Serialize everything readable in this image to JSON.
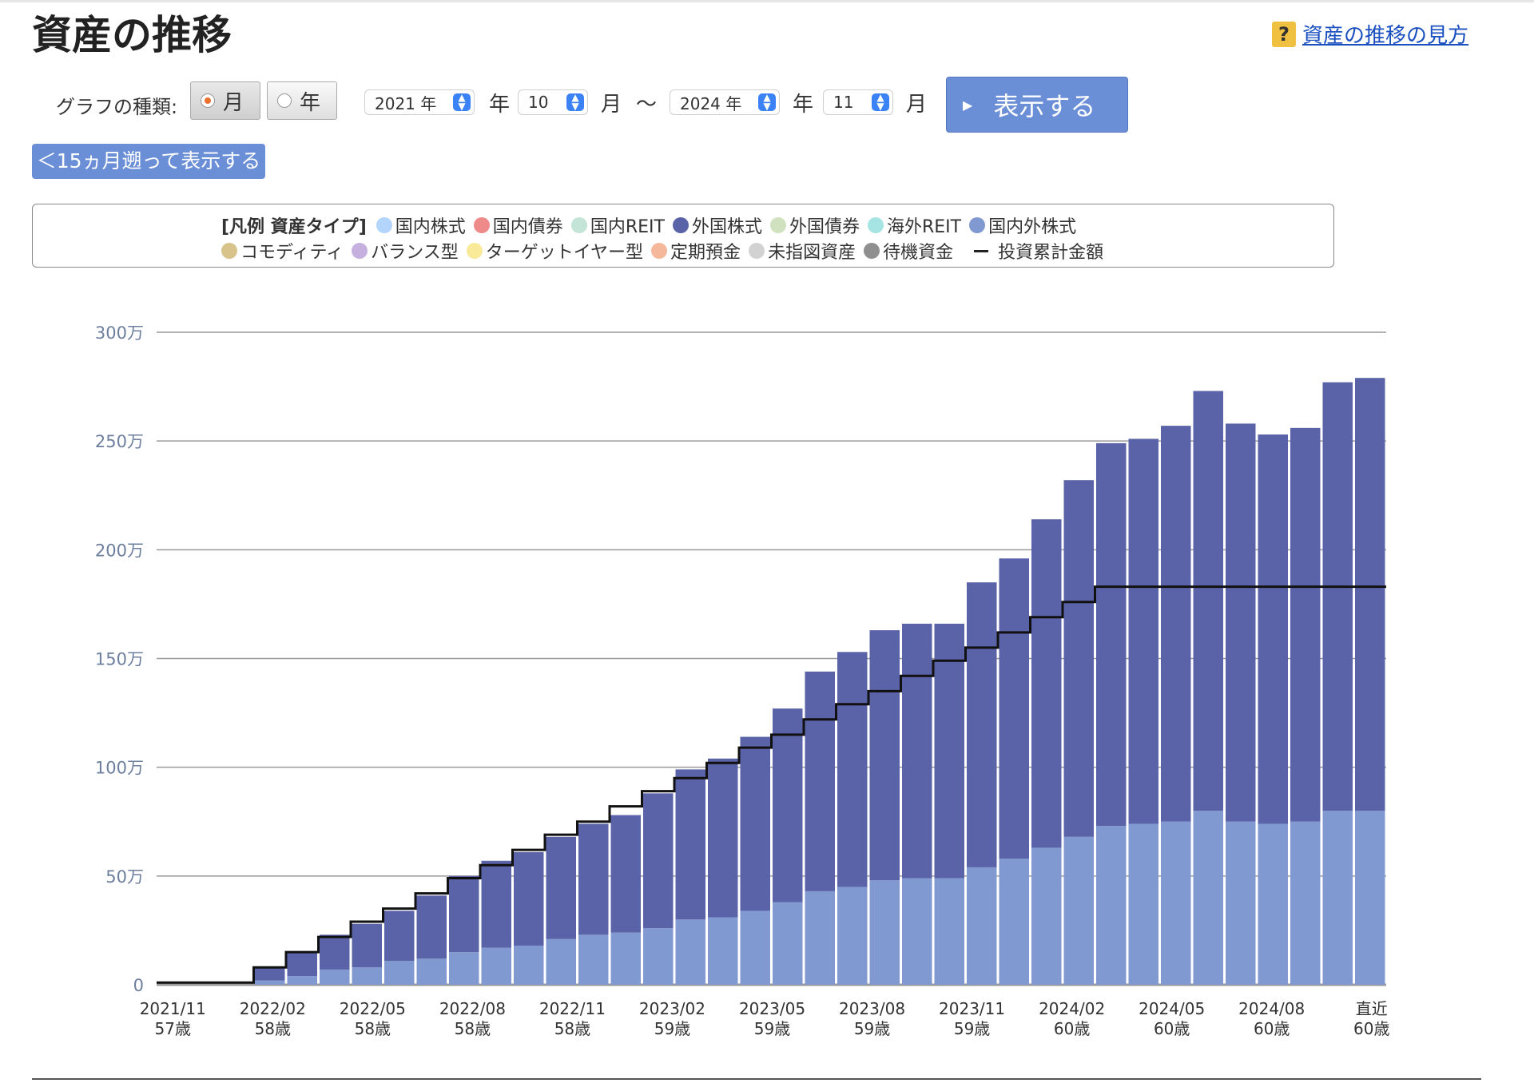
{
  "page": {
    "title": "資産の推移",
    "help_icon": "?",
    "help_link": "資産の推移の見方"
  },
  "controls": {
    "graph_type_label": "グラフの種類:",
    "radio_month": "月",
    "radio_year": "年",
    "radio_selected": "月",
    "start_year": "2021 年",
    "start_month": "10",
    "end_year": "2024 年",
    "end_month": "11",
    "year_unit": "年",
    "month_unit": "月",
    "range_sep": "〜",
    "show_button": "表示する",
    "back_button": "＜15ヵ月遡って表示する"
  },
  "legend": {
    "title": "[凡例 資産タイプ]",
    "items": [
      {
        "label": "国内株式",
        "color": "#b3d4fb"
      },
      {
        "label": "国内債券",
        "color": "#ee8a8a"
      },
      {
        "label": "国内REIT",
        "color": "#c3e4d6"
      },
      {
        "label": "外国株式",
        "color": "#5b63a8"
      },
      {
        "label": "外国債券",
        "color": "#cfe1bf"
      },
      {
        "label": "海外REIT",
        "color": "#a6e4e4"
      },
      {
        "label": "国内外株式",
        "color": "#8099d0"
      },
      {
        "label": "コモディティ",
        "color": "#d8c38a"
      },
      {
        "label": "バランス型",
        "color": "#c6b0e0"
      },
      {
        "label": "ターゲットイヤー型",
        "color": "#f8ea98"
      },
      {
        "label": "定期預金",
        "color": "#f5b89b"
      },
      {
        "label": "未指図資産",
        "color": "#d2d2d2"
      },
      {
        "label": "待機資金",
        "color": "#8f8f8f"
      }
    ],
    "line_item": "投資累計金額"
  },
  "chart_data": {
    "type": "bar",
    "stacked": true,
    "y_ticks": [
      "0",
      "50万",
      "100万",
      "150万",
      "200万",
      "250万",
      "300万"
    ],
    "ylim": [
      0,
      300
    ],
    "y_unit": "万",
    "grid": true,
    "x_labels": [
      {
        "date": "2021/11",
        "age": "57歳"
      },
      {
        "date": "2022/02",
        "age": "58歳"
      },
      {
        "date": "2022/05",
        "age": "58歳"
      },
      {
        "date": "2022/08",
        "age": "58歳"
      },
      {
        "date": "2022/11",
        "age": "58歳"
      },
      {
        "date": "2023/02",
        "age": "59歳"
      },
      {
        "date": "2023/05",
        "age": "59歳"
      },
      {
        "date": "2023/08",
        "age": "59歳"
      },
      {
        "date": "2023/11",
        "age": "59歳"
      },
      {
        "date": "2024/02",
        "age": "60歳"
      },
      {
        "date": "2024/05",
        "age": "60歳"
      },
      {
        "date": "2024/08",
        "age": "60歳"
      },
      {
        "date": "直近",
        "age": "60歳"
      }
    ],
    "series": [
      {
        "name": "国内外株式",
        "color": "#8099d0",
        "values": [
          0,
          0,
          0,
          2,
          4,
          7,
          8,
          11,
          12,
          15,
          17,
          18,
          21,
          23,
          24,
          26,
          30,
          31,
          34,
          38,
          43,
          45,
          48,
          49,
          49,
          54,
          58,
          63,
          68,
          73,
          74,
          75,
          80,
          75,
          74,
          75,
          80,
          80
        ]
      },
      {
        "name": "外国株式",
        "color": "#5b63a8",
        "values": [
          0,
          0,
          0,
          6,
          11,
          16,
          20,
          23,
          29,
          35,
          40,
          43,
          47,
          51,
          54,
          62,
          69,
          73,
          80,
          89,
          101,
          108,
          115,
          117,
          117,
          131,
          138,
          151,
          164,
          176,
          177,
          182,
          193,
          183,
          179,
          181,
          197,
          199
        ]
      },
      {
        "name": "投資累計金額",
        "type": "step-line",
        "color": "#111111",
        "values": [
          1,
          1,
          1,
          8,
          15,
          22,
          29,
          35,
          42,
          49,
          55,
          62,
          69,
          75,
          82,
          89,
          95,
          102,
          109,
          115,
          122,
          129,
          135,
          142,
          149,
          155,
          162,
          169,
          176,
          183,
          183,
          183,
          183,
          183,
          183,
          183,
          183,
          183
        ]
      }
    ]
  }
}
